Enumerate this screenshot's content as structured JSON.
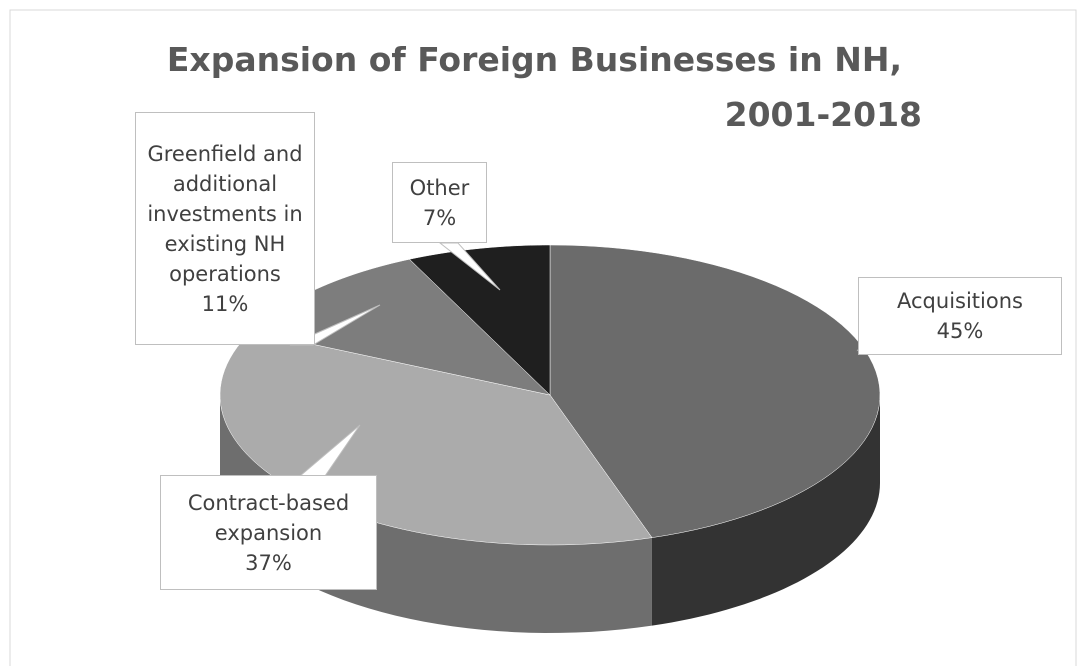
{
  "chart_data": {
    "type": "pie3d",
    "title": [
      "Expansion of Foreign Businesses in NH,",
      "2001-2018"
    ],
    "categories": [
      "Acquisitions",
      "Contract-based expansion",
      "Greenfield and additional investments in existing NH operations",
      "Other"
    ],
    "values": [
      45,
      37,
      11,
      7
    ],
    "value_labels": [
      "45%",
      "37%",
      "11%",
      "7%"
    ],
    "colors": [
      "#6b6b6b",
      "#ababab",
      "#7d7d7d",
      "#1f1f1f"
    ],
    "side_colors": [
      "#333333",
      "#6e6e6e",
      "#4a4a4a",
      "#0d0d0d"
    ]
  }
}
